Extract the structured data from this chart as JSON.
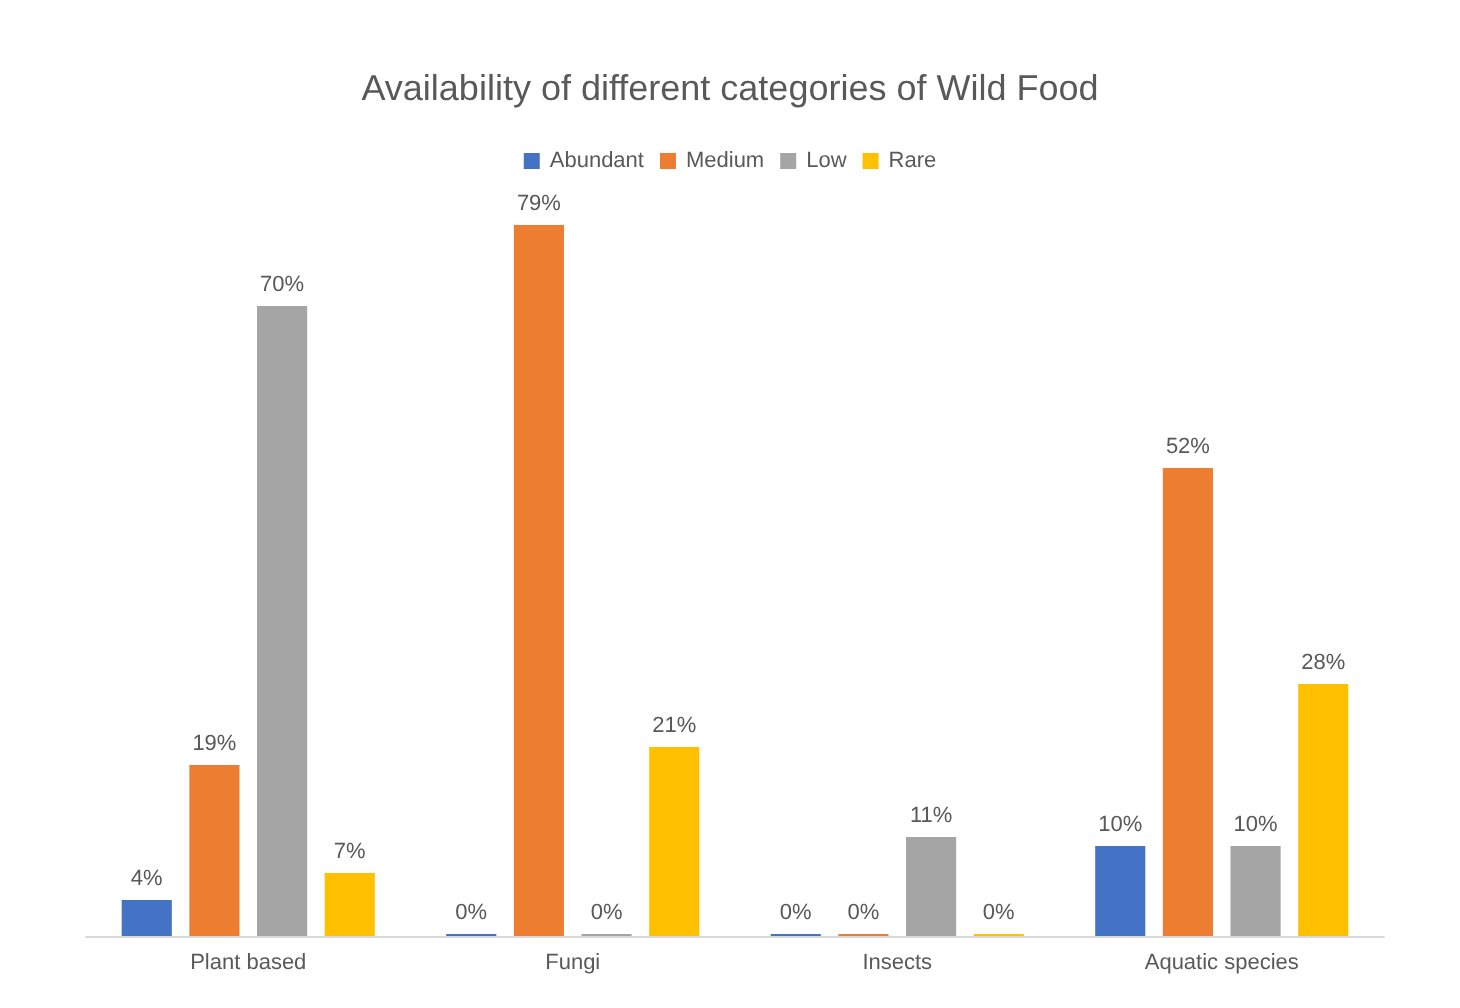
{
  "chart_data": {
    "type": "bar",
    "title": "Availability of different categories of Wild Food",
    "categories": [
      "Plant based",
      "Fungi",
      "Insects",
      "Aquatic species"
    ],
    "legend": "top",
    "grid": false,
    "series": [
      {
        "name": "Abundant",
        "color": "#4472c4",
        "values": [
          4,
          0,
          0,
          10
        ],
        "value_labels": [
          "4%",
          "0%",
          "0%",
          "10%"
        ]
      },
      {
        "name": "Medium",
        "color": "#ed7d31",
        "values": [
          19,
          79,
          0,
          52
        ],
        "value_labels": [
          "19%",
          "79%",
          "0%",
          "52%"
        ]
      },
      {
        "name": "Low",
        "color": "#a5a5a5",
        "values": [
          70,
          0,
          11,
          10
        ],
        "value_labels": [
          "70%",
          "0%",
          "11%",
          "10%"
        ]
      },
      {
        "name": "Rare",
        "color": "#ffc000",
        "values": [
          7,
          21,
          0,
          28
        ],
        "value_labels": [
          "7%",
          "21%",
          "0%",
          "28%"
        ]
      }
    ]
  }
}
